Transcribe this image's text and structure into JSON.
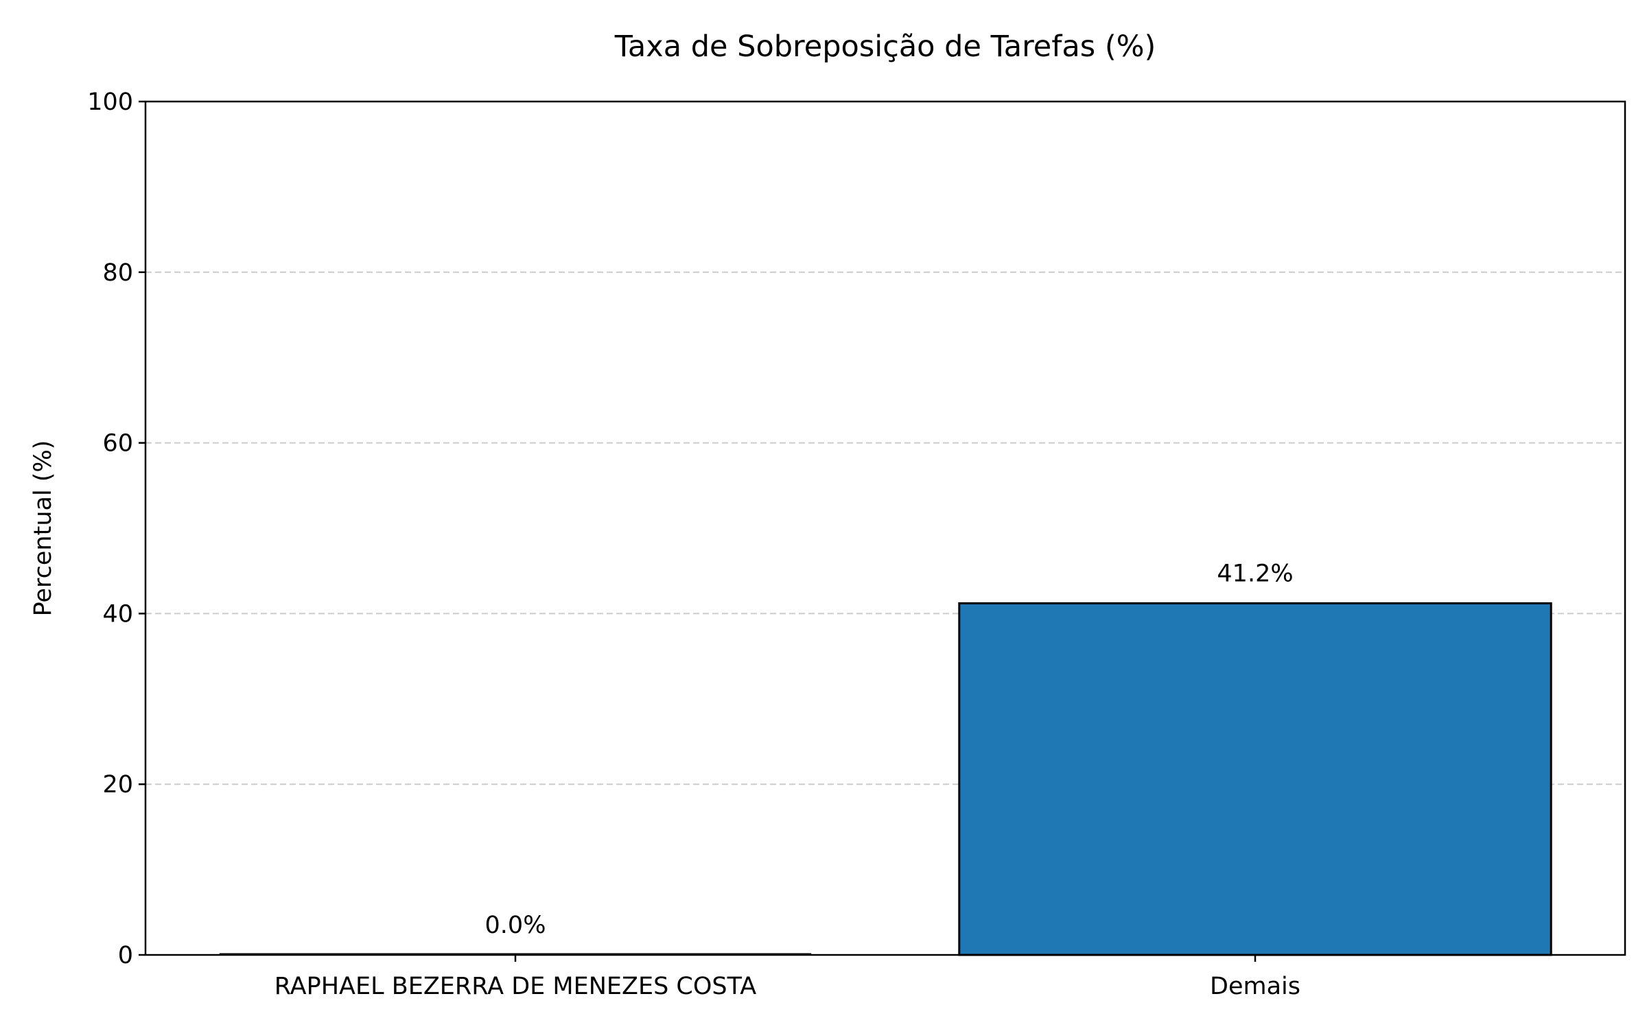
{
  "chart_data": {
    "type": "bar",
    "title": "Taxa de Sobreposição de Tarefas (%)",
    "xlabel": "",
    "ylabel": "Percentual (%)",
    "categories": [
      "RAPHAEL BEZERRA DE MENEZES COSTA",
      "Demais"
    ],
    "values": [
      0.0,
      41.2
    ],
    "value_labels": [
      "0.0%",
      "41.2%"
    ],
    "ylim": [
      0,
      100
    ],
    "yticks": [
      0,
      20,
      40,
      60,
      80,
      100
    ],
    "ytick_labels": [
      "0",
      "20",
      "40",
      "60",
      "80",
      "100"
    ],
    "grid": "y-dashed",
    "bar_color": "#1f77b4",
    "bar_edge_color": "#000000",
    "grid_color": "#cccccc"
  }
}
